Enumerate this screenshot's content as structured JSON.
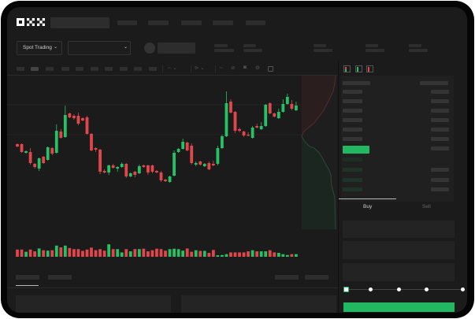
{
  "header": {
    "logo": "OKX"
  },
  "market_bar": {
    "mode_selector": "Spot Trading"
  },
  "order_form": {
    "tabs": [
      "Buy",
      "Sell"
    ],
    "active_tab": "Buy",
    "slider_value_percent": 0
  },
  "colors": {
    "up": "#26c165",
    "down": "#e0474c",
    "background": "#1b1b1b",
    "accent": "#22b862"
  },
  "chart_data": {
    "type": "candlestick",
    "title": "",
    "grid": true,
    "candles": [
      [
        68,
        69,
        64,
        65
      ],
      [
        68,
        69,
        57,
        58
      ],
      [
        57,
        60,
        56,
        59
      ],
      [
        58,
        63,
        42,
        44
      ],
      [
        43,
        44,
        37,
        39
      ],
      [
        37,
        51,
        34,
        50
      ],
      [
        52,
        53,
        43,
        44
      ],
      [
        48,
        65,
        47,
        64
      ],
      [
        63,
        64,
        54,
        56
      ],
      [
        57,
        93,
        56,
        85
      ],
      [
        84,
        87,
        75,
        76
      ],
      [
        77,
        117,
        76,
        105
      ],
      [
        107,
        108,
        101,
        102
      ],
      [
        104,
        106,
        99,
        101
      ],
      [
        104,
        108,
        92,
        94
      ],
      [
        101,
        102,
        97,
        98
      ],
      [
        102,
        104,
        80,
        81
      ],
      [
        81,
        82,
        59,
        60
      ],
      [
        63,
        64,
        58,
        61
      ],
      [
        61,
        62,
        30,
        33
      ],
      [
        34,
        36,
        31,
        32
      ],
      [
        32,
        42,
        29,
        41
      ],
      [
        41,
        43,
        37,
        38
      ],
      [
        37,
        40,
        33,
        39
      ],
      [
        39,
        45,
        38,
        43
      ],
      [
        43,
        44,
        25,
        27
      ],
      [
        27,
        32,
        26,
        31
      ],
      [
        33,
        34,
        26,
        29
      ],
      [
        31,
        42,
        30,
        40
      ],
      [
        41,
        42,
        38,
        39
      ],
      [
        41,
        42,
        29,
        32
      ],
      [
        41,
        42,
        31,
        33
      ],
      [
        34,
        35,
        31,
        32
      ],
      [
        32,
        34,
        20,
        22
      ],
      [
        23,
        24,
        20,
        21
      ],
      [
        20,
        28,
        19,
        27
      ],
      [
        28,
        60,
        27,
        57
      ],
      [
        58,
        63,
        57,
        62
      ],
      [
        62,
        75,
        61,
        71
      ],
      [
        70,
        71,
        59,
        60
      ],
      [
        66,
        69,
        42,
        44
      ],
      [
        42,
        46,
        40,
        44
      ],
      [
        46,
        47,
        41,
        42
      ],
      [
        40,
        44,
        39,
        43
      ],
      [
        44,
        46,
        35,
        36
      ],
      [
        43,
        47,
        40,
        41
      ],
      [
        43,
        66,
        41,
        63
      ],
      [
        63,
        80,
        62,
        78
      ],
      [
        78,
        135,
        77,
        120
      ],
      [
        122,
        125,
        107,
        108
      ],
      [
        109,
        110,
        82,
        85
      ],
      [
        87,
        89,
        83,
        85
      ],
      [
        84,
        85,
        77,
        79
      ],
      [
        80,
        83,
        78,
        79
      ],
      [
        76,
        91,
        75,
        89
      ],
      [
        91,
        94,
        88,
        89
      ],
      [
        87,
        96,
        86,
        91
      ],
      [
        91,
        119,
        90,
        118
      ],
      [
        120,
        121,
        106,
        107
      ],
      [
        107,
        108,
        102,
        103
      ],
      [
        101,
        113,
        100,
        109
      ],
      [
        109,
        125,
        108,
        119
      ],
      [
        119,
        132,
        118,
        128
      ],
      [
        119,
        124,
        111,
        113
      ],
      [
        111,
        122,
        110,
        117
      ]
    ],
    "volumes": [
      33,
      33,
      23,
      33,
      25,
      38,
      30,
      28,
      30,
      51,
      43,
      51,
      40,
      35,
      35,
      27,
      33,
      42,
      30,
      35,
      28,
      57,
      35,
      35,
      20,
      35,
      25,
      35,
      35,
      37,
      25,
      30,
      37,
      35,
      28,
      35,
      37,
      35,
      28,
      38,
      23,
      30,
      27,
      27,
      18,
      31,
      7,
      8,
      12,
      20,
      20,
      20,
      20,
      25,
      30,
      25,
      25,
      25,
      30,
      20,
      18,
      12,
      8,
      12,
      12
    ]
  }
}
